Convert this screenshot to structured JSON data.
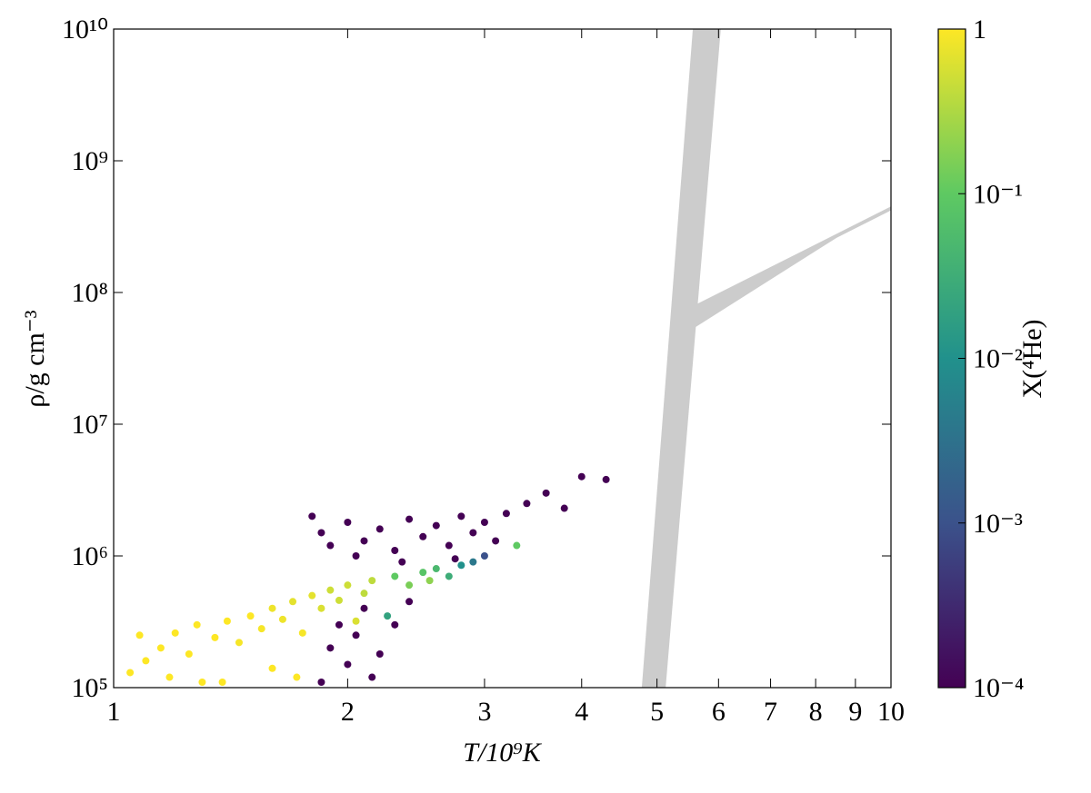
{
  "chart_data": {
    "type": "scatter",
    "xlabel": "T/10⁹K",
    "ylabel": "ρ/g cm⁻³",
    "colorbar_label": "X(⁴He)",
    "xscale": "log",
    "yscale": "log",
    "cscale": "log",
    "colormap": "viridis",
    "xlim": [
      1,
      10
    ],
    "ylim": [
      100000,
      10000000000
    ],
    "clim": [
      0.0001,
      1
    ],
    "xticks": [
      1,
      2,
      3,
      4,
      5,
      6,
      7,
      8,
      9,
      10
    ],
    "yticks": [
      {
        "value": 100000,
        "label": "10⁵"
      },
      {
        "value": 1000000,
        "label": "10⁶"
      },
      {
        "value": 10000000,
        "label": "10⁷"
      },
      {
        "value": 100000000,
        "label": "10⁸"
      },
      {
        "value": 1000000000,
        "label": "10⁹"
      },
      {
        "value": 10000000000,
        "label": "10¹⁰"
      }
    ],
    "cticks": [
      {
        "value": 0.0001,
        "label": "10⁻⁴"
      },
      {
        "value": 0.001,
        "label": "10⁻³"
      },
      {
        "value": 0.01,
        "label": "10⁻²"
      },
      {
        "value": 0.1,
        "label": "10⁻¹"
      },
      1
    ],
    "regions": [
      {
        "color": "#cccccc",
        "x": [
          5.56,
          6.04,
          5.13,
          4.78
        ],
        "y": [
          10000000000,
          10000000000,
          100000,
          100000
        ]
      },
      {
        "color": "#cccccc",
        "x": [
          5.61,
          10,
          10,
          8.51,
          5.56
        ],
        "y": [
          81000000,
          450000000,
          420000000,
          260000000,
          53000000
        ]
      }
    ],
    "x": [
      1.05,
      1.08,
      1.1,
      1.15,
      1.18,
      1.2,
      1.25,
      1.28,
      1.3,
      1.35,
      1.4,
      1.45,
      1.5,
      1.55,
      1.6,
      1.65,
      1.7,
      1.75,
      1.8,
      1.85,
      1.9,
      1.95,
      2.0,
      2.05,
      2.1,
      2.15,
      1.38,
      1.6,
      1.72,
      2.3,
      2.4,
      2.5,
      2.55,
      2.6,
      2.7,
      2.8,
      2.9,
      3.0,
      3.3,
      2.25,
      1.8,
      1.85,
      1.9,
      2.0,
      2.1,
      2.2,
      2.3,
      2.4,
      2.5,
      2.6,
      2.7,
      2.8,
      2.9,
      3.0,
      3.1,
      3.2,
      3.4,
      3.6,
      3.8,
      4.0,
      4.3,
      2.05,
      2.35,
      2.75,
      1.9,
      1.95,
      2.0,
      2.05,
      2.1,
      2.2,
      2.3,
      2.4,
      1.85,
      2.15
    ],
    "y": [
      130000,
      250000,
      160000,
      200000,
      120000,
      260000,
      180000,
      300000,
      110000,
      240000,
      320000,
      220000,
      350000,
      280000,
      400000,
      330000,
      450000,
      260000,
      500000,
      400000,
      550000,
      460000,
      600000,
      320000,
      520000,
      650000,
      110000,
      140000,
      120000,
      700000,
      600000,
      750000,
      650000,
      800000,
      700000,
      850000,
      900000,
      1000000,
      1200000,
      350000,
      2000000,
      1500000,
      1200000,
      1800000,
      1300000,
      1600000,
      1100000,
      1900000,
      1400000,
      1700000,
      1200000,
      2000000,
      1500000,
      1800000,
      1300000,
      2100000,
      2500000,
      3000000,
      2300000,
      4000000,
      3800000,
      1000000,
      900000,
      950000,
      200000,
      300000,
      150000,
      250000,
      400000,
      180000,
      300000,
      450000,
      110000,
      120000
    ],
    "c": [
      1,
      1,
      1,
      1,
      1,
      1,
      1,
      1,
      1,
      1,
      1,
      0.9,
      1,
      0.9,
      0.8,
      0.8,
      0.7,
      0.9,
      0.7,
      0.6,
      0.5,
      0.5,
      0.5,
      0.6,
      0.4,
      0.4,
      1,
      1,
      1,
      0.1,
      0.15,
      0.08,
      0.2,
      0.05,
      0.03,
      0.01,
      0.004,
      0.001,
      0.1,
      0.02,
      0.0001,
      0.0001,
      0.0001,
      0.0001,
      0.0001,
      0.0001,
      0.0001,
      0.0001,
      0.0001,
      0.0001,
      0.0001,
      0.0001,
      0.0001,
      0.0001,
      0.0001,
      0.0001,
      0.0001,
      0.0001,
      0.0001,
      0.0001,
      0.0001,
      0.0001,
      0.0001,
      0.0001,
      0.0001,
      0.0001,
      0.0001,
      0.0001,
      0.0001,
      0.0001,
      0.0001,
      0.0001,
      0.0001,
      0.0001
    ]
  }
}
